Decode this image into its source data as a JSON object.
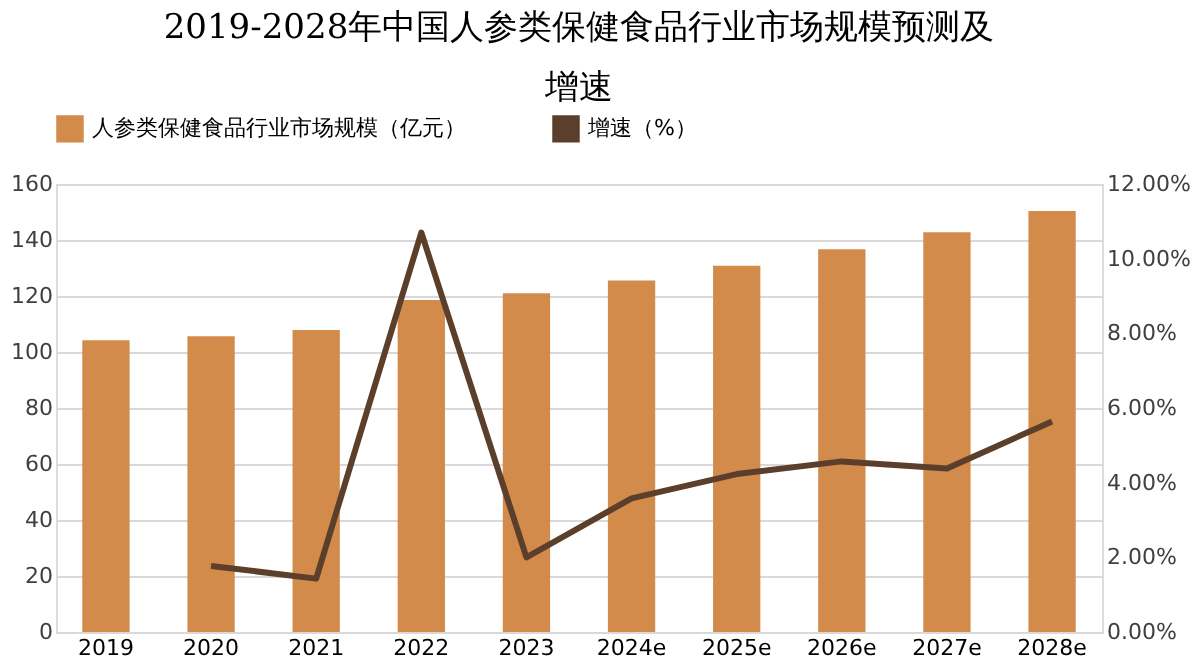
{
  "chart_data": {
    "type": "bar",
    "title": "2019-2028年中国人参类保健食品行业市场规模预测及增速",
    "categories": [
      "2019",
      "2020",
      "2021",
      "2022",
      "2023",
      "2024e",
      "2025e",
      "2026e",
      "2027e",
      "2028e"
    ],
    "series": [
      {
        "name": "人参类保健食品行业市场规模（亿元）",
        "color": "#d38b4c",
        "values": [
          104.2,
          105.6,
          107.9,
          118.6,
          121.0,
          125.5,
          130.8,
          136.7,
          142.8,
          150.4
        ]
      },
      {
        "name": "增速（%）",
        "type": "line",
        "axis": "y2",
        "color": "#5b3f2b",
        "values": [
          null,
          1.77,
          1.43,
          10.7,
          2.0,
          3.58,
          4.23,
          4.57,
          4.38,
          5.64
        ]
      }
    ],
    "ylim": [
      0,
      160
    ],
    "yticks": [
      0,
      20,
      40,
      60,
      80,
      100,
      120,
      140,
      160
    ],
    "y2lim": [
      0,
      12
    ],
    "y2ticks": [
      {
        "value": 0,
        "label": "0.00%"
      },
      {
        "value": 2,
        "label": "2.00%"
      },
      {
        "value": 4,
        "label": "4.00%"
      },
      {
        "value": 6,
        "label": "6.00%"
      },
      {
        "value": 8,
        "label": "8.00%"
      },
      {
        "value": 10,
        "label": "10.00%"
      },
      {
        "value": 12,
        "label": "12.00%"
      }
    ],
    "grid": "y",
    "legend": "top",
    "marker": "none",
    "line_style": "solid"
  }
}
